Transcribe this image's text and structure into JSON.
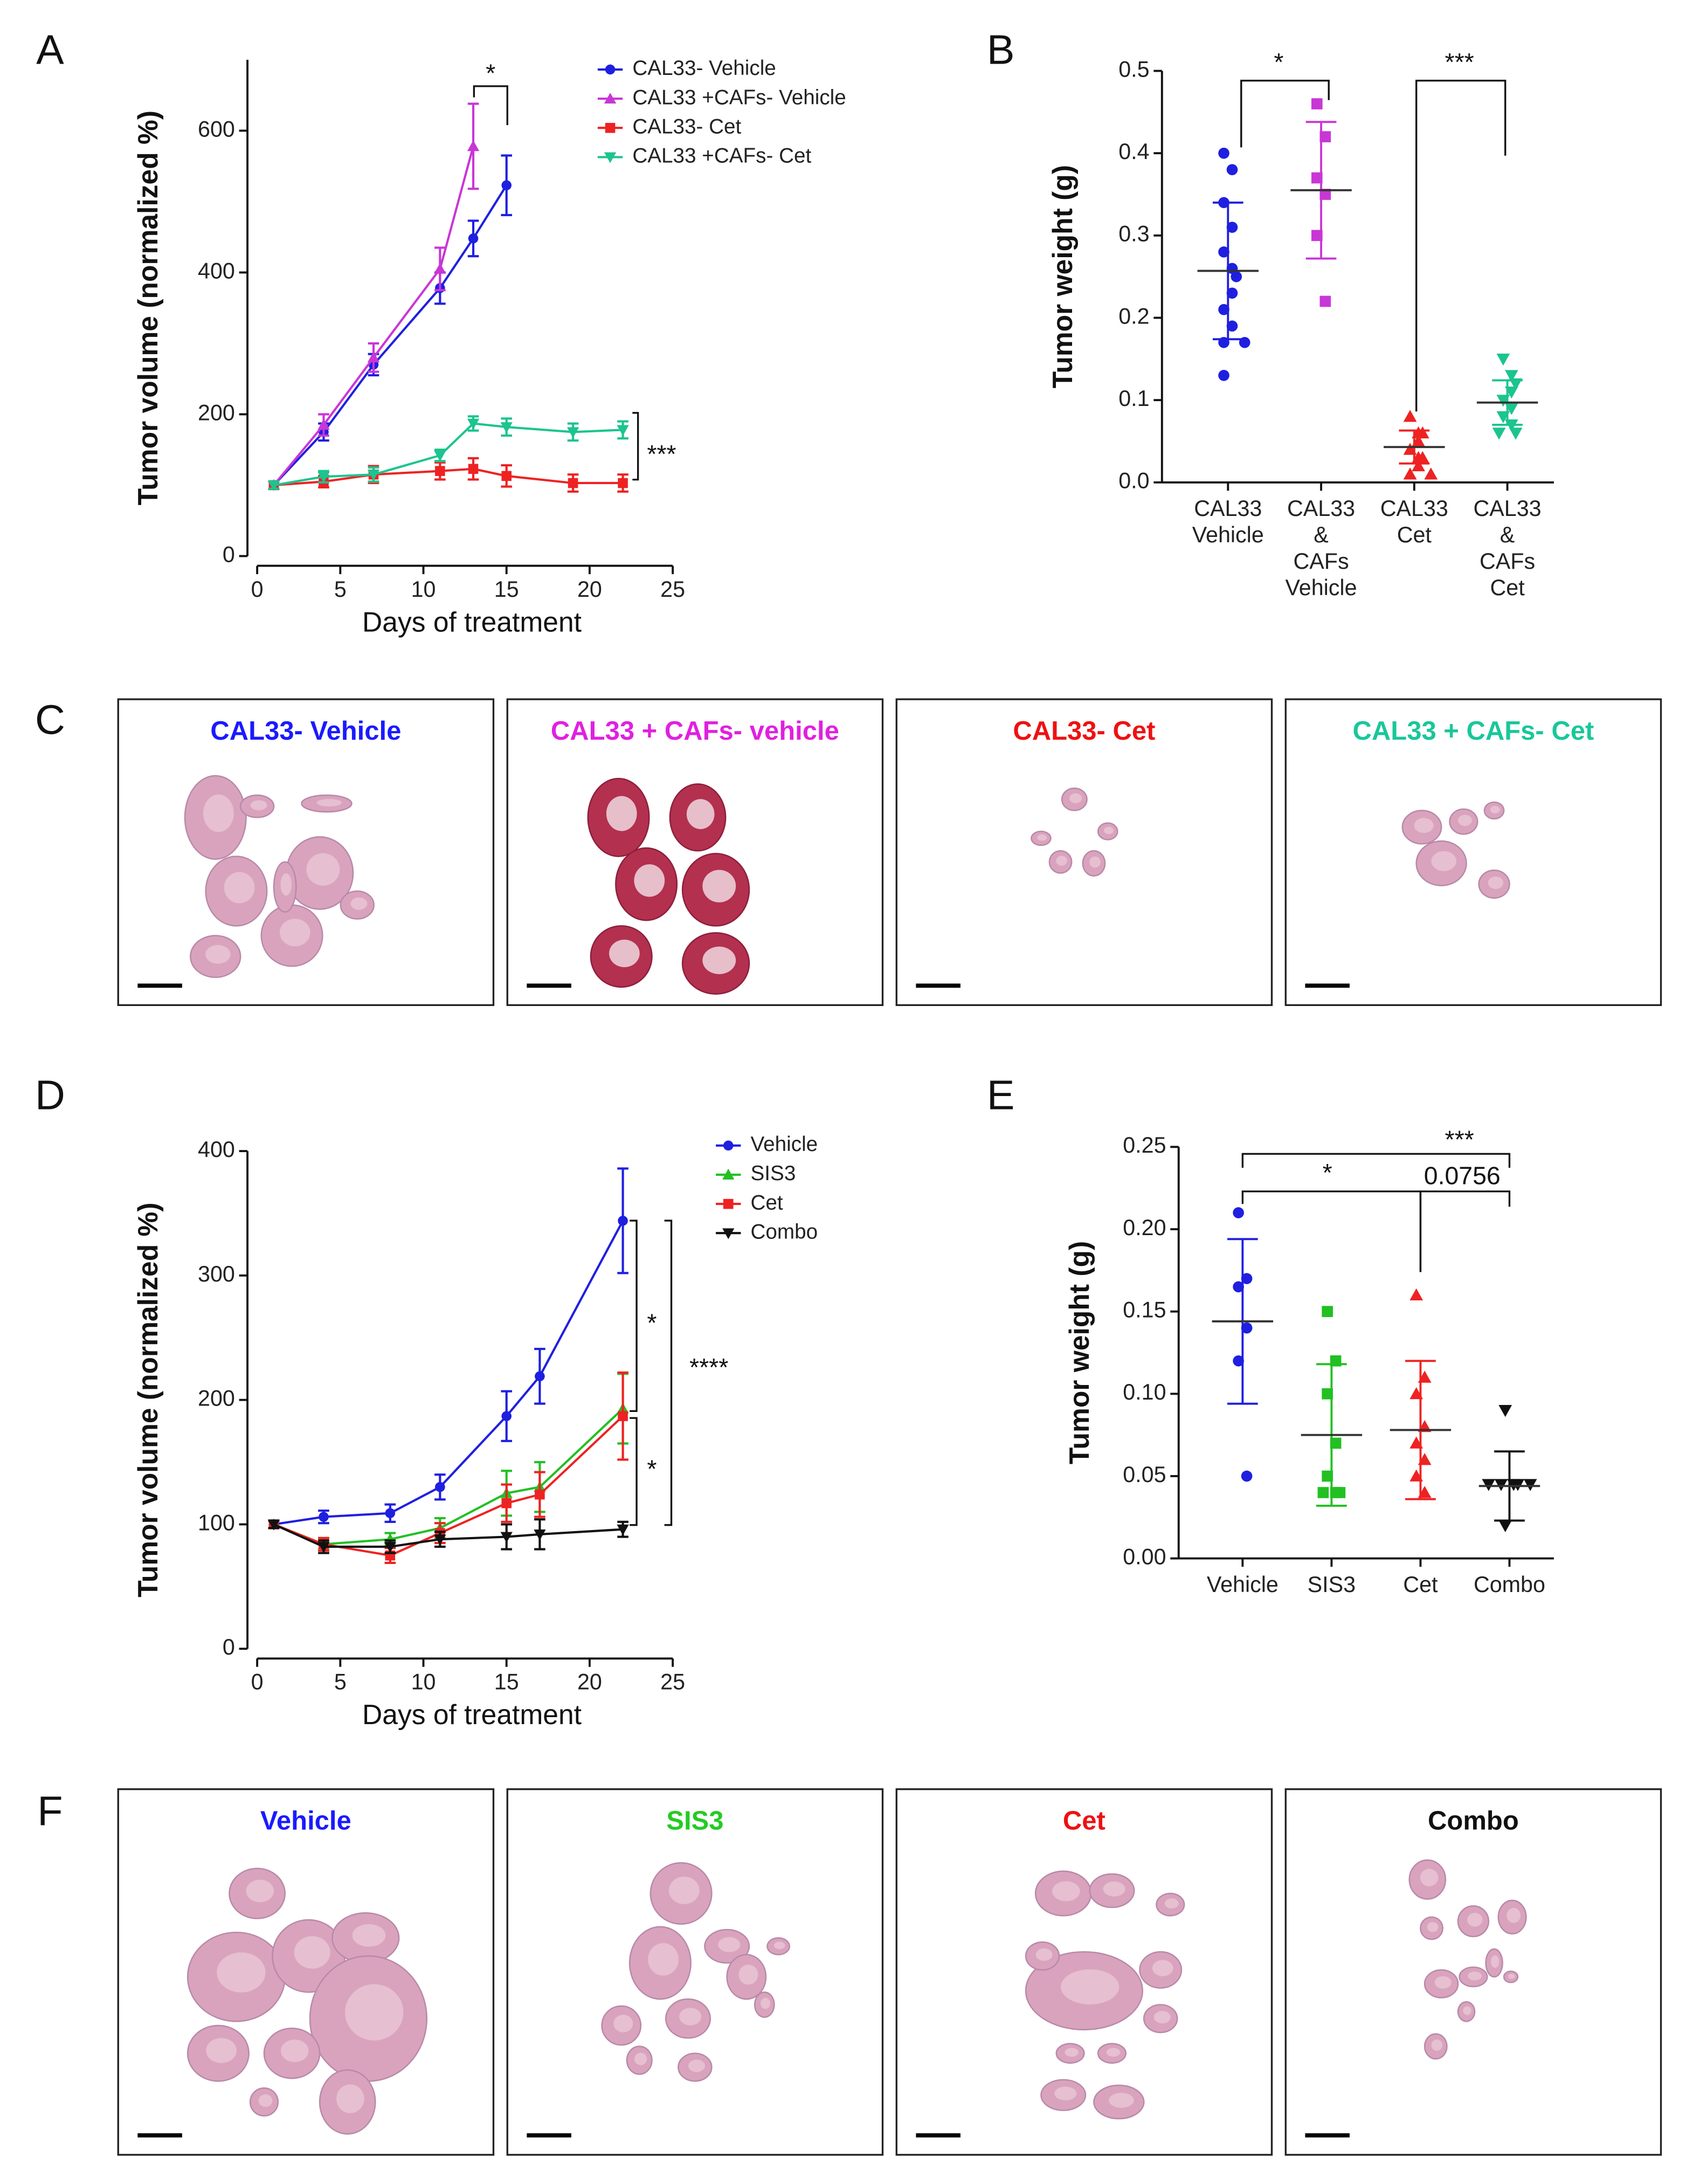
{
  "chart_data": [
    {
      "panel": "A",
      "type": "line",
      "ylabel": "Tumor volume (normalized %)",
      "xlabel": "Days of treatment",
      "xlim": [
        0,
        25
      ],
      "xticks": [
        0,
        5,
        10,
        15,
        20,
        25
      ],
      "ylim": [
        0,
        700
      ],
      "yticks": [
        0,
        200,
        400,
        600
      ],
      "series": [
        {
          "name": "CAL33- Vehicle",
          "color": "#1f1fe0",
          "marker": "circle",
          "x": [
            1,
            4,
            7,
            11,
            13,
            15
          ],
          "values": [
            100,
            175,
            270,
            378,
            448,
            523
          ],
          "errors": [
            5,
            12,
            15,
            22,
            25,
            42
          ]
        },
        {
          "name": "CAL33 +CAFs- Vehicle",
          "color": "#c936d6",
          "marker": "triangle-up",
          "x": [
            1,
            4,
            7,
            11,
            13
          ],
          "values": [
            100,
            185,
            280,
            405,
            578
          ],
          "errors": [
            5,
            15,
            20,
            30,
            60
          ]
        },
        {
          "name": "CAL33- Cet",
          "color": "#ee2222",
          "marker": "square",
          "x": [
            1,
            4,
            7,
            11,
            13,
            15,
            19,
            22
          ],
          "values": [
            100,
            105,
            115,
            120,
            123,
            113,
            103,
            103
          ],
          "errors": [
            5,
            8,
            12,
            12,
            15,
            15,
            12,
            12
          ]
        },
        {
          "name": "CAL33 +CAFs- Cet",
          "color": "#1cc48f",
          "marker": "triangle-down",
          "x": [
            1,
            4,
            7,
            11,
            13,
            15,
            19,
            22
          ],
          "values": [
            100,
            112,
            115,
            142,
            187,
            182,
            175,
            178
          ],
          "errors": [
            5,
            8,
            10,
            8,
            10,
            12,
            12,
            12
          ]
        }
      ],
      "annotations": [
        "*",
        "***"
      ]
    },
    {
      "panel": "B",
      "type": "dot",
      "ylabel": "Tumor weight (g)",
      "ylim": [
        0,
        0.5
      ],
      "yticks": [
        {
          "value": 0,
          "label": "0.0"
        },
        0.1,
        0.2,
        0.3,
        0.4,
        0.5
      ],
      "categories": [
        [
          "CAL33",
          "Vehicle"
        ],
        [
          "CAL33",
          "&",
          "CAFs",
          "Vehicle"
        ],
        [
          "CAL33",
          "Cet"
        ],
        [
          "CAL33",
          "&",
          "CAFs",
          "Cet"
        ]
      ],
      "groups": [
        {
          "color": "#1f1fe0",
          "marker": "circle",
          "points": [
            0.4,
            0.38,
            0.34,
            0.31,
            0.28,
            0.26,
            0.25,
            0.23,
            0.21,
            0.19,
            0.17,
            0.17,
            0.13
          ],
          "mean": 0.257,
          "sd": 0.083
        },
        {
          "color": "#c936d6",
          "marker": "square",
          "points": [
            0.46,
            0.42,
            0.37,
            0.35,
            0.3,
            0.22
          ],
          "mean": 0.355,
          "sd": 0.083
        },
        {
          "color": "#ee2222",
          "marker": "triangle-up",
          "points": [
            0.08,
            0.06,
            0.06,
            0.05,
            0.04,
            0.03,
            0.03,
            0.02,
            0.01,
            0.01
          ],
          "mean": 0.043,
          "sd": 0.02
        },
        {
          "color": "#1cc48f",
          "marker": "triangle-down",
          "points": [
            0.15,
            0.13,
            0.12,
            0.11,
            0.1,
            0.09,
            0.08,
            0.07,
            0.06,
            0.06
          ],
          "mean": 0.097,
          "sd": 0.027
        }
      ],
      "annotations": [
        "*",
        "***"
      ]
    },
    {
      "panel": "D",
      "type": "line",
      "ylabel": "Tumor volume (normalized %)",
      "xlabel": "Days of treatment",
      "xlim": [
        0,
        25
      ],
      "xticks": [
        0,
        5,
        10,
        15,
        20,
        25
      ],
      "ylim": [
        0,
        400
      ],
      "yticks": [
        0,
        100,
        200,
        300,
        400
      ],
      "series": [
        {
          "name": "Vehicle",
          "color": "#1f1fe0",
          "marker": "circle",
          "x": [
            1,
            4,
            8,
            11,
            15,
            17,
            22
          ],
          "values": [
            100,
            106,
            109,
            130,
            187,
            219,
            344
          ],
          "errors": [
            3,
            5,
            7,
            10,
            20,
            22,
            42
          ]
        },
        {
          "name": "SIS3",
          "color": "#22c022",
          "marker": "triangle-up",
          "x": [
            1,
            4,
            8,
            11,
            15,
            17,
            22
          ],
          "values": [
            100,
            84,
            88,
            97,
            125,
            130,
            193
          ],
          "errors": [
            3,
            5,
            5,
            8,
            18,
            20,
            28
          ]
        },
        {
          "name": "Cet",
          "color": "#ee2222",
          "marker": "square",
          "x": [
            1,
            4,
            8,
            11,
            15,
            17,
            22
          ],
          "values": [
            100,
            84,
            75,
            93,
            117,
            124,
            187
          ],
          "errors": [
            3,
            5,
            6,
            8,
            15,
            18,
            35
          ]
        },
        {
          "name": "Combo",
          "color": "#111111",
          "marker": "triangle-down",
          "x": [
            1,
            4,
            8,
            11,
            15,
            17,
            22
          ],
          "values": [
            100,
            82,
            82,
            88,
            90,
            92,
            96
          ],
          "errors": [
            3,
            5,
            5,
            6,
            10,
            12,
            6
          ]
        }
      ],
      "annotations": [
        "*",
        "*",
        "****"
      ]
    },
    {
      "panel": "E",
      "type": "dot",
      "ylabel": "Tumor weight (g)",
      "ylim": [
        0,
        0.25
      ],
      "yticks": [
        {
          "value": 0,
          "label": "0.00"
        },
        {
          "value": 0.05,
          "label": "0.05"
        },
        {
          "value": 0.1,
          "label": "0.10"
        },
        {
          "value": 0.15,
          "label": "0.15"
        },
        {
          "value": 0.2,
          "label": "0.20"
        },
        {
          "value": 0.25,
          "label": "0.25"
        }
      ],
      "categories": [
        "Vehicle",
        "SIS3",
        "Cet",
        "Combo"
      ],
      "groups": [
        {
          "color": "#1f1fe0",
          "marker": "circle",
          "points": [
            0.21,
            0.17,
            0.165,
            0.14,
            0.12,
            0.05
          ],
          "mean": 0.144,
          "sd": 0.05
        },
        {
          "color": "#22c022",
          "marker": "square",
          "points": [
            0.15,
            0.12,
            0.1,
            0.07,
            0.05,
            0.04,
            0.04,
            0.04
          ],
          "mean": 0.075,
          "sd": 0.043
        },
        {
          "color": "#ee2222",
          "marker": "triangle-up",
          "points": [
            0.16,
            0.11,
            0.1,
            0.08,
            0.07,
            0.06,
            0.05,
            0.04
          ],
          "mean": 0.078,
          "sd": 0.042
        },
        {
          "color": "#111111",
          "marker": "triangle-down",
          "points": [
            0.09,
            0.045,
            0.045,
            0.045,
            0.045,
            0.045,
            0.02
          ],
          "mean": 0.044,
          "sd": 0.021
        }
      ],
      "annotations": [
        "***",
        "*",
        "0.0756"
      ]
    }
  ],
  "image_panels": [
    {
      "panel": "C",
      "images": [
        {
          "title": "CAL33- Vehicle",
          "color": "#1a1aff"
        },
        {
          "title": "CAL33 + CAFs- vehicle",
          "color": "#e020e0"
        },
        {
          "title": "CAL33- Cet",
          "color": "#ee1111"
        },
        {
          "title": "CAL33 + CAFs- Cet",
          "color": "#19c79a"
        }
      ]
    },
    {
      "panel": "F",
      "images": [
        {
          "title": "Vehicle",
          "color": "#1a1aff"
        },
        {
          "title": "SIS3",
          "color": "#22cc22"
        },
        {
          "title": "Cet",
          "color": "#ee1111"
        },
        {
          "title": "Combo",
          "color": "#111111"
        }
      ]
    }
  ]
}
